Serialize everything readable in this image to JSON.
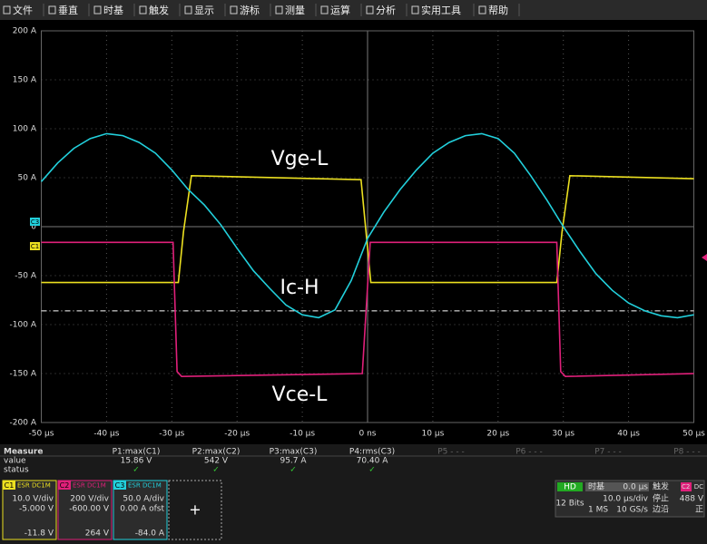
{
  "menu": [
    "文件",
    "垂直",
    "时基",
    "触发",
    "显示",
    "游标",
    "测量",
    "运算",
    "分析",
    "实用工具",
    "帮助"
  ],
  "plot": {
    "yticks": [
      {
        "value": 200,
        "label": "200 A"
      },
      {
        "value": 150,
        "label": "150 A"
      },
      {
        "value": 100,
        "label": "100 A"
      },
      {
        "value": 50,
        "label": "50 A"
      },
      {
        "value": 0,
        "label": "0"
      },
      {
        "value": -50,
        "label": "-50 A"
      },
      {
        "value": -100,
        "label": "-100 A"
      },
      {
        "value": -150,
        "label": "-150 A"
      },
      {
        "value": -200,
        "label": "-200 A"
      }
    ],
    "xticks": [
      {
        "value": -50,
        "label": "-50 µs"
      },
      {
        "value": -40,
        "label": "-40 µs"
      },
      {
        "value": -30,
        "label": "-30 µs"
      },
      {
        "value": -20,
        "label": "-20 µs"
      },
      {
        "value": -10,
        "label": "-10 µs"
      },
      {
        "value": 0,
        "label": "0 ns"
      },
      {
        "value": 10,
        "label": "10 µs"
      },
      {
        "value": 20,
        "label": "20 µs"
      },
      {
        "value": 30,
        "label": "30 µs"
      },
      {
        "value": 40,
        "label": "40 µs"
      },
      {
        "value": 50,
        "label": "50 µs"
      }
    ],
    "traces": [
      {
        "name": "C1",
        "color": "#ece020",
        "x": [
          -50,
          -29,
          -28.2,
          -27,
          -1,
          0.5,
          29,
          29.8,
          31,
          50
        ],
        "values": [
          -57,
          -57,
          -5,
          52,
          48,
          -57,
          -57,
          -5,
          52,
          49
        ]
      },
      {
        "name": "C2",
        "color": "#e0207a",
        "x": [
          -50,
          -29.8,
          -29.2,
          -28.5,
          -0.8,
          0.4,
          29,
          29.6,
          30.3,
          50
        ],
        "values": [
          -16,
          -16,
          -148,
          -153,
          -150,
          -16,
          -16,
          -148,
          -153,
          -150
        ]
      },
      {
        "name": "C3",
        "color": "#22d0dc",
        "x": [
          -50,
          -47.5,
          -45,
          -42.5,
          -40,
          -37.5,
          -35,
          -32.5,
          -30,
          -27.5,
          -25,
          -22.5,
          -20,
          -17.5,
          -15,
          -12.5,
          -10,
          -7.5,
          -5,
          -2.5,
          0,
          2.5,
          5,
          7.5,
          10,
          12.5,
          15,
          17.5,
          20,
          22.5,
          25,
          27.5,
          30,
          32.5,
          35,
          37.5,
          40,
          42.5,
          45,
          47.5,
          50
        ],
        "values": [
          46,
          65,
          80,
          90,
          95,
          93,
          86,
          75,
          58,
          38,
          22,
          2,
          -22,
          -45,
          -63,
          -80,
          -90,
          -93,
          -85,
          -55,
          -12,
          15,
          38,
          58,
          75,
          86,
          93,
          95,
          90,
          75,
          52,
          27,
          0,
          -25,
          -48,
          -65,
          -78,
          -86,
          -91,
          -93,
          -90
        ]
      }
    ],
    "labels": [
      "Vge-L",
      "Ic-H",
      "Vce-L"
    ],
    "cursor_level": -86,
    "channel_tags": [
      "C3",
      "C1"
    ]
  },
  "measure": {
    "title": "Measure",
    "params": [
      "P1:max(C1)",
      "P2:max(C2)",
      "P3:max(C3)",
      "P4:rms(C3)",
      "P5 - - -",
      "P6 - - -",
      "P7 - - -",
      "P8 - - -"
    ],
    "row_labels": [
      "value",
      "status"
    ],
    "values": [
      "15.86 V",
      "542 V",
      "95.7 A",
      "70.40 A"
    ],
    "status": [
      "✓",
      "✓",
      "✓",
      "✓"
    ]
  },
  "channels": [
    {
      "name": "C1",
      "tags": [
        "ESR",
        "DC1M"
      ],
      "scale": "10.0 V/div",
      "offset": "-5.000 V",
      "reading": "-11.8 V"
    },
    {
      "name": "C2",
      "tags": [
        "ESR",
        "DC1M"
      ],
      "scale": "200 V/div",
      "offset": "-600.00 V",
      "reading": "264 V"
    },
    {
      "name": "C3",
      "tags": [
        "ESR",
        "DC1M"
      ],
      "scale": "50.0 A/div",
      "offset": "0.00 A ofst",
      "reading": "-84.0 A"
    }
  ],
  "add_button": "+",
  "acquisition": {
    "mode": "HD",
    "bits": "12 Bits",
    "timebase_title": "时基",
    "delay": "0.0 µs",
    "time_div": "10.0 µs/div",
    "memory": "1 MS",
    "rate": "10 GS/s",
    "trigger_title": "触发",
    "trigger_source": "C2",
    "trigger_coupling": "DC",
    "state": "停止",
    "level": "488 V",
    "type": "边沿",
    "slope": "正"
  }
}
